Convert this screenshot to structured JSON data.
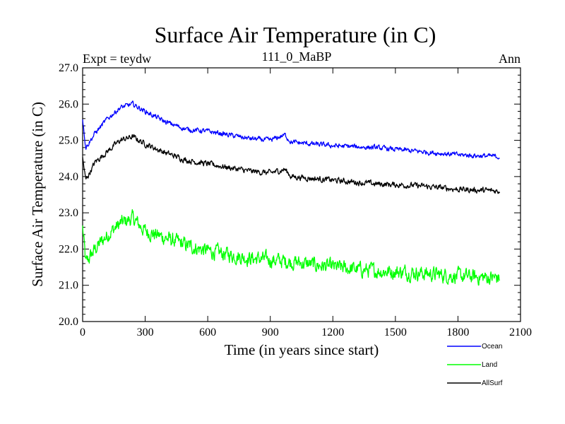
{
  "chart_data": {
    "type": "line",
    "title": "Surface Air Temperature (in C)",
    "subtitle_left": "Expt = teydw",
    "subtitle_center": "111_0_MaBP",
    "subtitle_right": "Ann",
    "xlabel": "Time (in years since start)",
    "ylabel": "Surface Air Temperature (in C)",
    "xlim": [
      0,
      2100
    ],
    "ylim": [
      20.0,
      27.0
    ],
    "xticks": [
      0,
      300,
      600,
      900,
      1200,
      1500,
      1800,
      2100
    ],
    "xtick_labels": [
      "0",
      "300",
      "600",
      "900",
      "1200",
      "1500",
      "1800",
      "2100"
    ],
    "yticks": [
      20,
      21,
      22,
      23,
      24,
      25,
      26,
      27
    ],
    "ytick_labels": [
      "20.0",
      "21.0",
      "22.0",
      "23.0",
      "24.0",
      "25.0",
      "26.0",
      "27.0"
    ],
    "legend_position": "bottom-right, outside plot",
    "series": [
      {
        "name": "Ocean",
        "color": "#0000ff",
        "noise": 0.06,
        "points": [
          [
            0,
            25.6
          ],
          [
            15,
            24.8
          ],
          [
            60,
            25.2
          ],
          [
            120,
            25.6
          ],
          [
            180,
            25.9
          ],
          [
            240,
            26.0
          ],
          [
            300,
            25.8
          ],
          [
            400,
            25.5
          ],
          [
            500,
            25.3
          ],
          [
            600,
            25.25
          ],
          [
            700,
            25.15
          ],
          [
            800,
            25.05
          ],
          [
            900,
            25.0
          ],
          [
            970,
            25.15
          ],
          [
            1000,
            24.95
          ],
          [
            1200,
            24.85
          ],
          [
            1400,
            24.8
          ],
          [
            1600,
            24.7
          ],
          [
            1800,
            24.6
          ],
          [
            2000,
            24.55
          ]
        ]
      },
      {
        "name": "Land",
        "color": "#00ff00",
        "noise": 0.18,
        "points": [
          [
            0,
            22.6
          ],
          [
            15,
            21.6
          ],
          [
            60,
            22.0
          ],
          [
            120,
            22.4
          ],
          [
            180,
            22.7
          ],
          [
            240,
            22.85
          ],
          [
            300,
            22.5
          ],
          [
            400,
            22.3
          ],
          [
            500,
            22.1
          ],
          [
            600,
            21.95
          ],
          [
            700,
            21.85
          ],
          [
            800,
            21.75
          ],
          [
            900,
            21.7
          ],
          [
            1000,
            21.65
          ],
          [
            1200,
            21.5
          ],
          [
            1400,
            21.4
          ],
          [
            1600,
            21.35
          ],
          [
            1800,
            21.25
          ],
          [
            2000,
            21.2
          ]
        ]
      },
      {
        "name": "AllSurf",
        "color": "#000000",
        "noise": 0.07,
        "points": [
          [
            0,
            24.5
          ],
          [
            15,
            23.9
          ],
          [
            60,
            24.4
          ],
          [
            120,
            24.7
          ],
          [
            180,
            25.0
          ],
          [
            240,
            25.1
          ],
          [
            300,
            24.9
          ],
          [
            400,
            24.65
          ],
          [
            500,
            24.45
          ],
          [
            600,
            24.35
          ],
          [
            700,
            24.25
          ],
          [
            800,
            24.15
          ],
          [
            900,
            24.1
          ],
          [
            970,
            24.2
          ],
          [
            1000,
            24.0
          ],
          [
            1200,
            23.9
          ],
          [
            1400,
            23.8
          ],
          [
            1600,
            23.75
          ],
          [
            1800,
            23.65
          ],
          [
            2000,
            23.6
          ]
        ]
      }
    ]
  }
}
